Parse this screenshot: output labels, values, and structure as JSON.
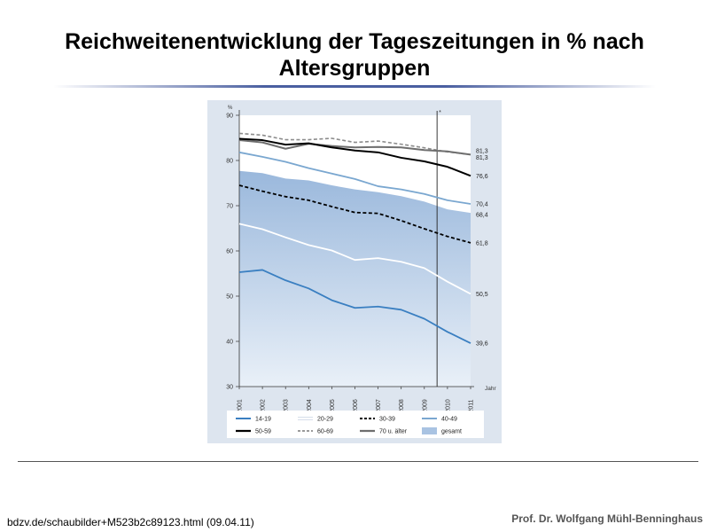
{
  "slide": {
    "title_line1": "Reichweitenentwicklung der Tageszeitungen in % nach",
    "title_line2": "Altersgruppen",
    "source": "bdzv.de/schaubilder+M523b2c89123.html  (09.04.11)",
    "author": "Prof. Dr. Wolfgang Mühl-Benninghaus"
  },
  "chart_data": {
    "type": "line",
    "title": "",
    "xlabel": "Jahr",
    "ylabel": "%",
    "ylim": [
      30,
      90
    ],
    "yticks": [
      30,
      40,
      50,
      60,
      70,
      80,
      90
    ],
    "categories": [
      "2001",
      "2002",
      "2003",
      "2004",
      "2005",
      "2006",
      "2007",
      "2008",
      "2009",
      "2010",
      "2011"
    ],
    "marker_after": "2009",
    "marker_label": "*",
    "grid": false,
    "legend_position": "bottom",
    "series": [
      {
        "name": "14-19",
        "style": "solid",
        "color": "#3a7fc1",
        "width": 1.8,
        "values": [
          55.3,
          55.8,
          53.5,
          51.7,
          49.1,
          47.4,
          47.7,
          47.0,
          45.0,
          42.1,
          39.6
        ],
        "end_label": "39,6"
      },
      {
        "name": "20-29",
        "style": "solid",
        "color": "#ffffff",
        "width": 1.8,
        "values": [
          66.0,
          64.8,
          63.0,
          61.3,
          60.1,
          58.0,
          58.4,
          57.6,
          56.2,
          53.2,
          50.5
        ],
        "end_label": "50,5"
      },
      {
        "name": "30-39",
        "style": "dashed",
        "color": "#000000",
        "width": 1.8,
        "values": [
          74.5,
          73.2,
          72.0,
          71.2,
          69.8,
          68.5,
          68.3,
          66.7,
          64.9,
          63.2,
          61.8
        ],
        "end_label": "61,8"
      },
      {
        "name": "40-49",
        "style": "solid",
        "color": "#7aa7d0",
        "width": 1.8,
        "values": [
          81.8,
          80.8,
          79.7,
          78.3,
          77.1,
          75.9,
          74.3,
          73.6,
          72.6,
          71.2,
          70.4
        ],
        "end_label": "70,4"
      },
      {
        "name": "50-59",
        "style": "solid",
        "color": "#000000",
        "width": 2.0,
        "values": [
          84.8,
          84.5,
          83.5,
          83.8,
          82.9,
          82.2,
          81.8,
          80.6,
          79.8,
          78.6,
          76.6
        ],
        "end_label": "76,6"
      },
      {
        "name": "60-69",
        "style": "dashed",
        "color": "#8c8c8c",
        "width": 1.6,
        "values": [
          86.0,
          85.6,
          84.6,
          84.6,
          84.9,
          84.0,
          84.3,
          83.6,
          82.8,
          81.9,
          81.3
        ],
        "end_label": "81,3"
      },
      {
        "name": "70 u. älter",
        "style": "solid",
        "color": "#6e6e6e",
        "width": 2.0,
        "values": [
          84.5,
          84.0,
          82.6,
          83.7,
          83.2,
          82.9,
          83.0,
          82.9,
          82.3,
          82.0,
          81.3
        ],
        "end_label": "81,3"
      },
      {
        "name": "gesamt",
        "style": "area",
        "color": "#a9c3e2",
        "values": [
          77.7,
          77.2,
          76.0,
          75.6,
          74.5,
          73.6,
          73.0,
          72.1,
          70.9,
          69.2,
          68.4
        ],
        "end_label": "68,4"
      }
    ]
  }
}
